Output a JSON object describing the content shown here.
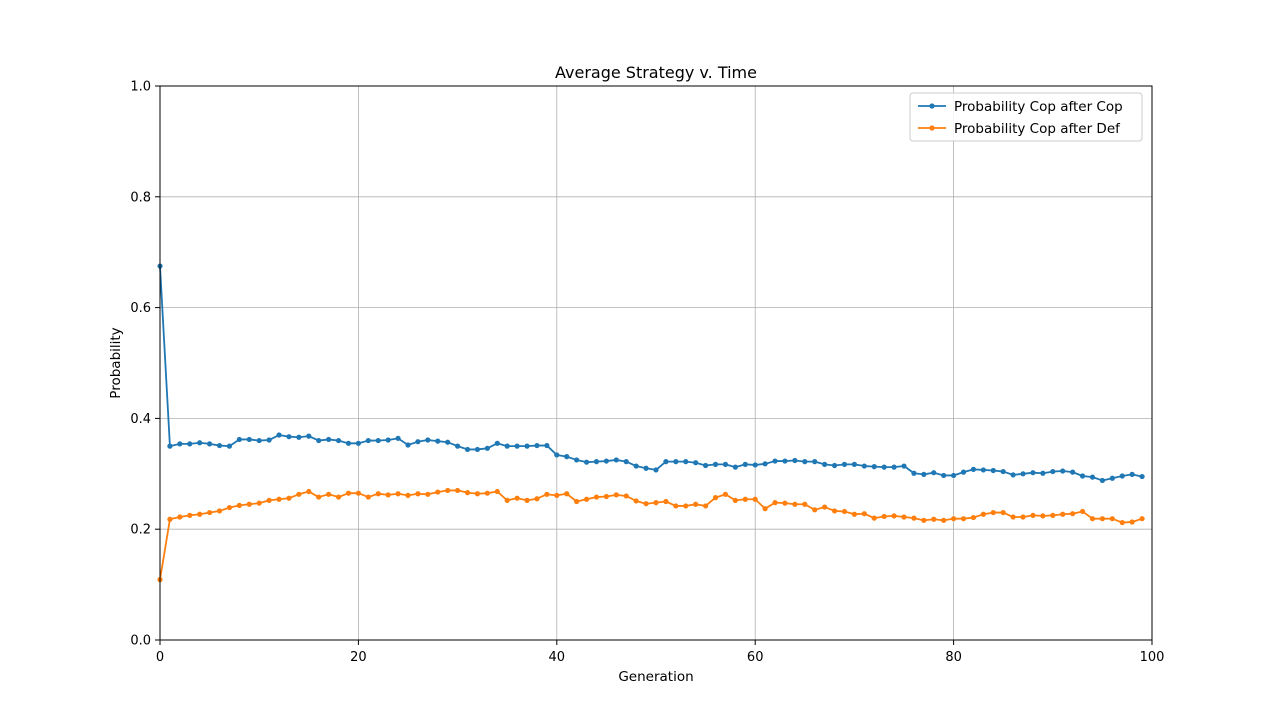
{
  "chart_data": {
    "type": "line",
    "title": "Average Strategy v. Time",
    "xlabel": "Generation",
    "ylabel": "Probability",
    "xlim": [
      0,
      100
    ],
    "ylim": [
      0.0,
      1.0
    ],
    "xticks": [
      "0",
      "20",
      "40",
      "60",
      "80",
      "100"
    ],
    "yticks": [
      "0.0",
      "0.2",
      "0.4",
      "0.6",
      "0.8",
      "1.0"
    ],
    "grid": true,
    "legend_position": "top-right",
    "x": [
      0,
      1,
      2,
      3,
      4,
      5,
      6,
      7,
      8,
      9,
      10,
      11,
      12,
      13,
      14,
      15,
      16,
      17,
      18,
      19,
      20,
      21,
      22,
      23,
      24,
      25,
      26,
      27,
      28,
      29,
      30,
      31,
      32,
      33,
      34,
      35,
      36,
      37,
      38,
      39,
      40,
      41,
      42,
      43,
      44,
      45,
      46,
      47,
      48,
      49,
      50,
      51,
      52,
      53,
      54,
      55,
      56,
      57,
      58,
      59,
      60,
      61,
      62,
      63,
      64,
      65,
      66,
      67,
      68,
      69,
      70,
      71,
      72,
      73,
      74,
      75,
      76,
      77,
      78,
      79,
      80,
      81,
      82,
      83,
      84,
      85,
      86,
      87,
      88,
      89,
      90,
      91,
      92,
      93,
      94,
      95,
      96,
      97,
      98,
      99
    ],
    "series": [
      {
        "name": "Probability Cop after Cop",
        "color": "#1f77b4",
        "values": [
          0.675,
          0.35,
          0.354,
          0.354,
          0.356,
          0.354,
          0.351,
          0.35,
          0.362,
          0.362,
          0.36,
          0.361,
          0.37,
          0.367,
          0.366,
          0.368,
          0.36,
          0.362,
          0.36,
          0.355,
          0.355,
          0.36,
          0.36,
          0.361,
          0.364,
          0.352,
          0.358,
          0.361,
          0.359,
          0.357,
          0.35,
          0.344,
          0.344,
          0.346,
          0.355,
          0.35,
          0.35,
          0.35,
          0.351,
          0.351,
          0.334,
          0.331,
          0.325,
          0.321,
          0.322,
          0.323,
          0.325,
          0.322,
          0.314,
          0.31,
          0.307,
          0.322,
          0.322,
          0.322,
          0.32,
          0.315,
          0.317,
          0.317,
          0.312,
          0.317,
          0.316,
          0.318,
          0.323,
          0.323,
          0.324,
          0.322,
          0.322,
          0.317,
          0.315,
          0.317,
          0.317,
          0.314,
          0.313,
          0.312,
          0.312,
          0.314,
          0.301,
          0.299,
          0.302,
          0.297,
          0.297,
          0.303,
          0.308,
          0.307,
          0.306,
          0.304,
          0.298,
          0.3,
          0.302,
          0.301,
          0.304,
          0.305,
          0.303,
          0.296,
          0.294,
          0.288,
          0.292,
          0.296,
          0.299,
          0.295
        ]
      },
      {
        "name": "Probability Cop after Def",
        "color": "#ff7f0e",
        "values": [
          0.109,
          0.218,
          0.222,
          0.225,
          0.227,
          0.23,
          0.233,
          0.239,
          0.243,
          0.245,
          0.247,
          0.252,
          0.254,
          0.256,
          0.263,
          0.268,
          0.258,
          0.263,
          0.258,
          0.265,
          0.265,
          0.258,
          0.264,
          0.262,
          0.264,
          0.261,
          0.264,
          0.263,
          0.267,
          0.27,
          0.27,
          0.266,
          0.264,
          0.265,
          0.268,
          0.252,
          0.256,
          0.252,
          0.255,
          0.263,
          0.261,
          0.264,
          0.25,
          0.254,
          0.258,
          0.259,
          0.262,
          0.26,
          0.251,
          0.246,
          0.248,
          0.25,
          0.242,
          0.242,
          0.245,
          0.242,
          0.257,
          0.263,
          0.252,
          0.254,
          0.254,
          0.237,
          0.248,
          0.247,
          0.245,
          0.245,
          0.235,
          0.24,
          0.233,
          0.232,
          0.227,
          0.228,
          0.22,
          0.223,
          0.224,
          0.222,
          0.22,
          0.216,
          0.218,
          0.216,
          0.219,
          0.219,
          0.221,
          0.227,
          0.23,
          0.23,
          0.222,
          0.222,
          0.225,
          0.224,
          0.225,
          0.227,
          0.228,
          0.232,
          0.219,
          0.219,
          0.219,
          0.212,
          0.213,
          0.219
        ]
      }
    ]
  }
}
